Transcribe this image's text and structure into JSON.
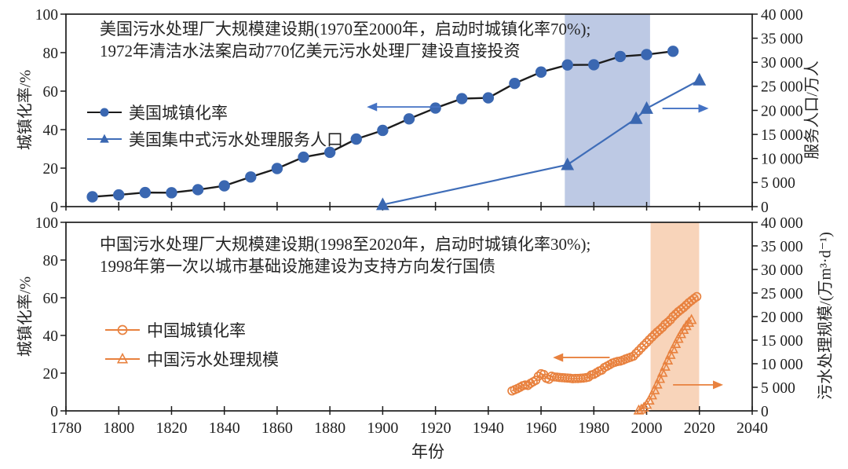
{
  "x_axis": {
    "label": "年份",
    "ticks": [
      1780,
      1800,
      1820,
      1840,
      1860,
      1880,
      1900,
      1920,
      1940,
      1960,
      1980,
      2000,
      2020,
      2040
    ]
  },
  "chart_data": [
    {
      "id": "us_panel",
      "type": "line",
      "annotation_lines": [
        "美国污水处理厂大规模建设期(1970至2000年，启动时城镇化率70%);",
        "1972年清洁水法案启动770亿美元污水处理厂建设直接投资"
      ],
      "x_range": [
        1780,
        2040
      ],
      "left_axis": {
        "label": "城镇化率/%",
        "min": 0,
        "max": 100,
        "ticks": [
          0,
          20,
          40,
          60,
          80,
          100
        ]
      },
      "right_axis": {
        "label": "服务人口/万人",
        "min": 0,
        "max": 40000,
        "tick_step": 5000,
        "tick_labels": [
          "0",
          "5 000",
          "10 000",
          "15 000",
          "20 000",
          "25 000",
          "30 000",
          "35 000",
          "40 000"
        ]
      },
      "highlight_span": {
        "from_year": 1969,
        "to_year": 2001.3,
        "color": "#bdc9e4"
      },
      "legend": [
        {
          "label": "美国城镇化率",
          "marker": "circle-filled",
          "marker_color": "#3a67b1",
          "line_color": "#1c1c1c"
        },
        {
          "label": "美国集中式污水处理服务人口",
          "marker": "triangle-filled",
          "marker_color": "#3a67b1",
          "line_color": "#3f6db8"
        }
      ],
      "series": [
        {
          "id": "us-urbanization-rate",
          "name": "美国城镇化率",
          "axis": "left",
          "marker": "circle-filled",
          "marker_size": 7.2,
          "marker_color": "#3a67b1",
          "line_color": "#1c1c1c",
          "line_width": 2.4,
          "x": [
            1790,
            1800,
            1810,
            1820,
            1830,
            1840,
            1850,
            1860,
            1870,
            1880,
            1890,
            1900,
            1910,
            1920,
            1930,
            1940,
            1950,
            1960,
            1970,
            1980,
            1990,
            2000,
            2010
          ],
          "y": [
            5.1,
            6.1,
            7.3,
            7.2,
            8.8,
            10.8,
            15.4,
            19.8,
            25.7,
            28.2,
            35.1,
            39.6,
            45.6,
            51.2,
            56.1,
            56.5,
            64.0,
            69.9,
            73.6,
            73.7,
            78.0,
            79.0,
            80.7
          ]
        },
        {
          "id": "us-sewage-service-population",
          "name": "美国集中式污水处理服务人口",
          "axis": "right",
          "marker": "triangle-filled",
          "marker_size": 8,
          "marker_color": "#3a67b1",
          "line_color": "#3f6db8",
          "line_width": 2.2,
          "x": [
            1900,
            1970,
            1996,
            2000,
            2020
          ],
          "y": [
            400,
            8700,
            18300,
            20400,
            26300
          ]
        }
      ],
      "arrows": [
        {
          "points_to": "left-axis-series",
          "tail_year": 1922,
          "head_year": 1894,
          "y_pct": 51.8,
          "color": "#4472c4"
        },
        {
          "points_to": "right-axis-series",
          "tail_year": 2006,
          "head_year": 2023.5,
          "y_pct": 51.0,
          "color": "#4472c4"
        }
      ]
    },
    {
      "id": "china_panel",
      "type": "line",
      "annotation_lines": [
        "中国污水处理厂大规模建设期(1998至2020年，启动时城镇化率30%);",
        "1998年第一次以城市基础设施建设为支持方向发行国债"
      ],
      "x_range": [
        1780,
        2040
      ],
      "left_axis": {
        "label": "城镇化率/%",
        "min": 0,
        "max": 100,
        "ticks": [
          0,
          20,
          40,
          60,
          80,
          100
        ]
      },
      "right_axis": {
        "label": "污水处理规模/(万m³·d⁻¹)",
        "min": 0,
        "max": 40000,
        "tick_step": 5000,
        "tick_labels": [
          "0",
          "5 000",
          "10 000",
          "15 000",
          "20 000",
          "25 000",
          "30 000",
          "35 000",
          "40 000"
        ]
      },
      "highlight_span": {
        "from_year": 2001.5,
        "to_year": 2019.9,
        "color": "#f8d4ba"
      },
      "legend": [
        {
          "label": "中国城镇化率",
          "marker": "circle-open",
          "marker_color": "#e8813e",
          "line_color": "#e8813e"
        },
        {
          "label": "中国污水处理规模",
          "marker": "triangle-open",
          "marker_color": "#e8813e",
          "line_color": "#e8813e"
        }
      ],
      "series": [
        {
          "id": "china-urbanization-rate",
          "name": "中国城镇化率",
          "axis": "left",
          "marker": "circle-open",
          "marker_size": 5,
          "marker_color": "#e8813e",
          "line_color": "#e8813e",
          "line_width": 1.5,
          "x_start": 1949,
          "x_step": 1,
          "y": [
            10.6,
            11.2,
            11.8,
            12.5,
            13.3,
            13.7,
            13.5,
            14.6,
            15.4,
            16.2,
            18.4,
            19.7,
            19.3,
            17.3,
            16.8,
            18.4,
            18.0,
            17.9,
            17.7,
            17.6,
            17.5,
            17.4,
            17.3,
            17.1,
            17.2,
            17.2,
            17.3,
            17.4,
            17.6,
            17.9,
            19.0,
            19.4,
            20.2,
            21.1,
            21.6,
            23.0,
            23.7,
            24.5,
            25.3,
            25.8,
            26.2,
            26.4,
            26.9,
            27.5,
            28.0,
            28.5,
            29.0,
            30.5,
            31.9,
            33.4,
            34.8,
            36.2,
            37.7,
            39.1,
            40.5,
            41.8,
            43.0,
            44.3,
            45.9,
            47.0,
            48.3,
            50.0,
            51.3,
            52.6,
            53.7,
            54.8,
            56.1,
            57.4,
            58.5,
            59.6,
            60.6
          ]
        },
        {
          "id": "china-wastewater-treatment-scale",
          "name": "中国污水处理规模",
          "axis": "right",
          "marker": "triangle-open",
          "marker_size": 5.2,
          "marker_color": "#e8813e",
          "line_color": "#e8813e",
          "line_width": 1.5,
          "x_start": 1997,
          "x_step": 1,
          "y": [
            100,
            300,
            700,
            1300,
            2200,
            3300,
            4400,
            5600,
            6800,
            8100,
            9400,
            10700,
            11900,
            13100,
            14200,
            15300,
            16300,
            17200,
            18000,
            18700,
            19300
          ]
        }
      ],
      "arrows": [
        {
          "points_to": "left-axis-series",
          "tail_year": 1986,
          "head_year": 1964.5,
          "y_pct": 28.3,
          "color": "#e8813e"
        },
        {
          "points_to": "right-axis-series",
          "tail_year": 2010,
          "head_year": 2029,
          "y_pct": 13.8,
          "color": "#e8813e"
        }
      ]
    }
  ]
}
